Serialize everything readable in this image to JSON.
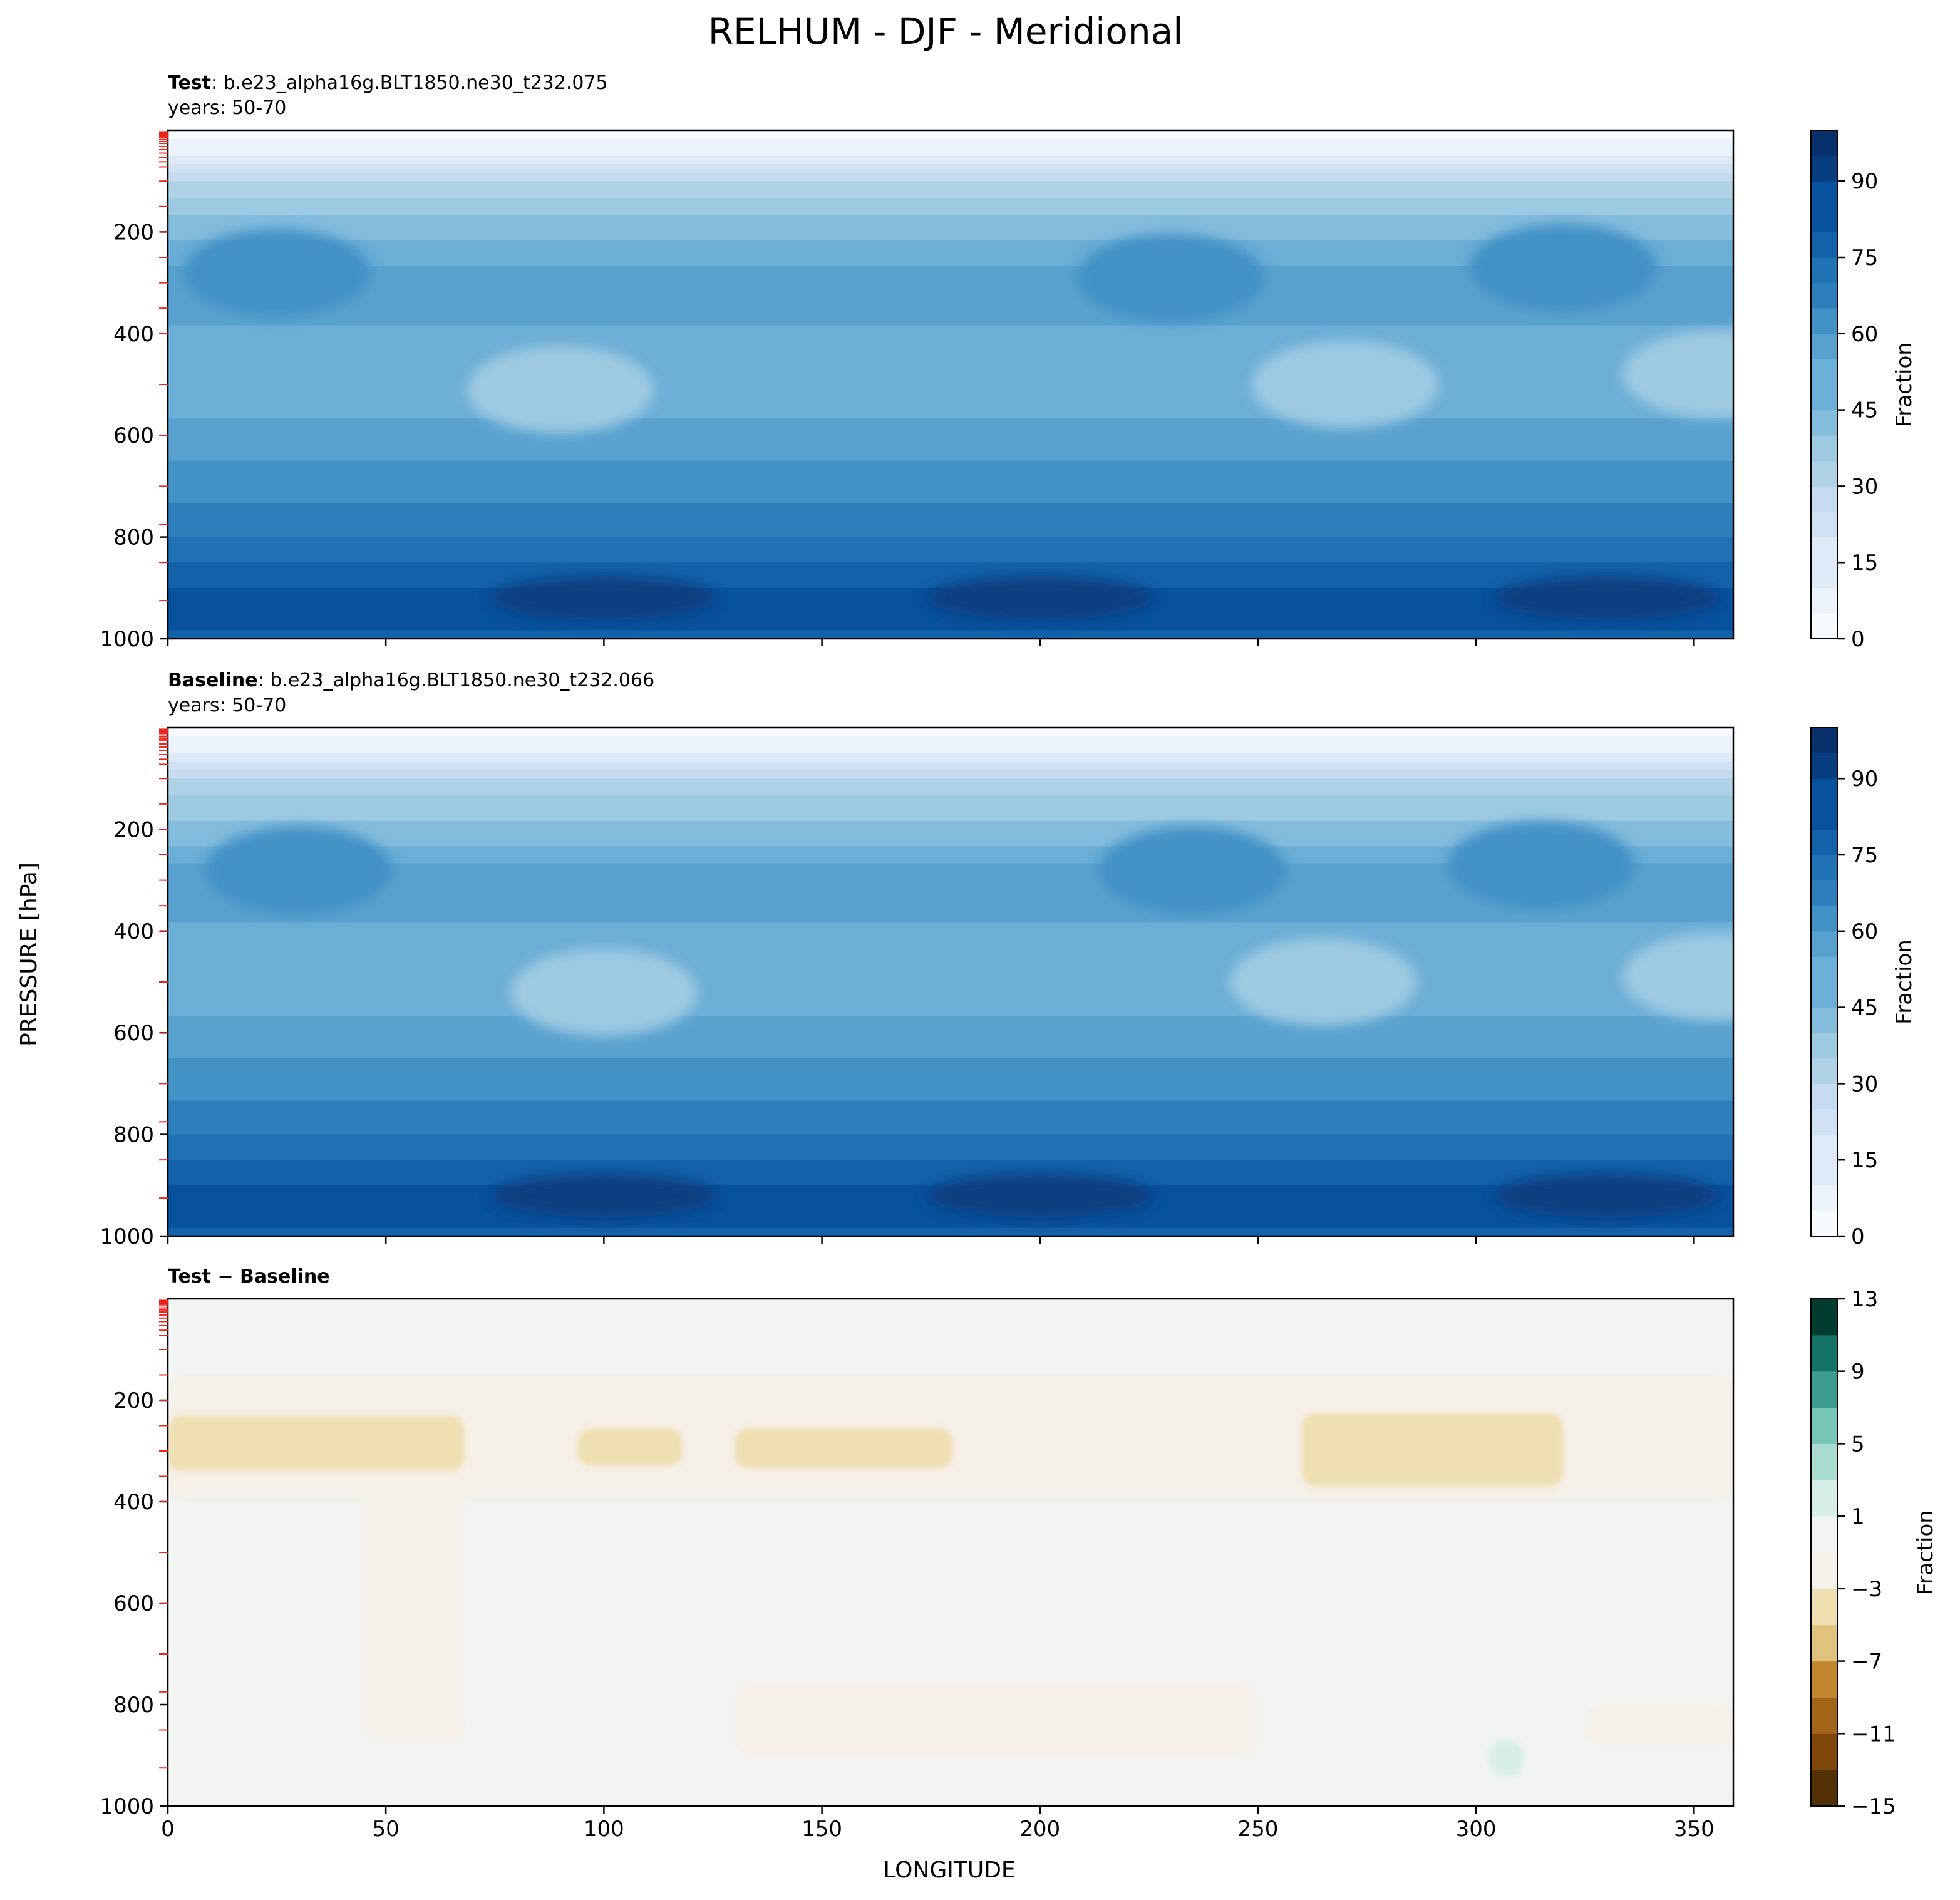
{
  "figure": {
    "title": "RELHUM - DJF - Meridional",
    "ylabel": "PRESSURE [hPa]",
    "xlabel": "LONGITUDE"
  },
  "panels": [
    {
      "id": "test",
      "label_bold": "Test",
      "label_rest": ": b.e23_alpha16g.BLT1850.ne30_t232.075",
      "years": "years: 50-70",
      "colorbar_label": "Fraction"
    },
    {
      "id": "baseline",
      "label_bold": "Baseline",
      "label_rest": ": b.e23_alpha16g.BLT1850.ne30_t232.066",
      "years": "years: 50-70",
      "colorbar_label": "Fraction"
    },
    {
      "id": "diff",
      "label_bold": "Test − Baseline",
      "label_rest": "",
      "years": "",
      "colorbar_label": "Fraction"
    }
  ],
  "colors": {
    "blues": [
      "#f7fbff",
      "#eaf3fb",
      "#deebf7",
      "#cfe1f2",
      "#c6dbef",
      "#b0d2e7",
      "#9ecae1",
      "#84bcdc",
      "#6baed6",
      "#58a1cf",
      "#4292c6",
      "#2f7ebc",
      "#2171b5",
      "#1361a9",
      "#08519c",
      "#083e80",
      "#08306b"
    ],
    "brbg": [
      "#543005",
      "#7f470b",
      "#a36519",
      "#c2872f",
      "#dfc27d",
      "#f0dfb0",
      "#f5f0e8",
      "#f2f4f4",
      "#d7eee8",
      "#abdcd0",
      "#76c5b6",
      "#3c9c8f",
      "#147266",
      "#003c30"
    ]
  },
  "chart_data": [
    {
      "type": "contourf",
      "panel": "test",
      "x": {
        "name": "LONGITUDE",
        "range": [
          0,
          359
        ],
        "ticks": [
          0,
          50,
          100,
          150,
          200,
          250,
          300,
          350
        ]
      },
      "y": {
        "name": "PRESSURE [hPa]",
        "range": [
          0,
          1000
        ],
        "inverted": true,
        "ticks": [
          200,
          400,
          600,
          800,
          1000
        ]
      },
      "levels": [
        0,
        5,
        10,
        15,
        20,
        25,
        30,
        35,
        40,
        45,
        50,
        55,
        60,
        65,
        70,
        75,
        80,
        85,
        90,
        95,
        100
      ],
      "colorbar": {
        "ticks": [
          0,
          15,
          30,
          45,
          60,
          75,
          90
        ],
        "label": "Fraction"
      },
      "profile_by_pressure": [
        {
          "p": 0,
          "rh": 2
        },
        {
          "p": 50,
          "rh": 10
        },
        {
          "p": 100,
          "rh": 30
        },
        {
          "p": 200,
          "rh": 45
        },
        {
          "p": 300,
          "rh": 58
        },
        {
          "p": 400,
          "rh": 52
        },
        {
          "p": 500,
          "rh": 48
        },
        {
          "p": 600,
          "rh": 55
        },
        {
          "p": 700,
          "rh": 62
        },
        {
          "p": 800,
          "rh": 70
        },
        {
          "p": 900,
          "rh": 82
        },
        {
          "p": 950,
          "rh": 88
        },
        {
          "p": 1000,
          "rh": 80
        }
      ],
      "features": [
        {
          "kind": "dry_mid",
          "lon": 90,
          "p": 510,
          "value": 38
        },
        {
          "kind": "dry_mid",
          "lon": 270,
          "p": 500,
          "value": 36
        },
        {
          "kind": "dry_mid",
          "lon": 355,
          "p": 480,
          "value": 40
        },
        {
          "kind": "moist_upper",
          "lon": 25,
          "p": 280,
          "value": 62
        },
        {
          "kind": "moist_upper",
          "lon": 230,
          "p": 290,
          "value": 62
        },
        {
          "kind": "moist_upper",
          "lon": 320,
          "p": 270,
          "value": 62
        },
        {
          "kind": "moist_low",
          "lon": 200,
          "p": 920,
          "value": 92
        },
        {
          "kind": "moist_low",
          "lon": 100,
          "p": 920,
          "value": 90
        },
        {
          "kind": "moist_low",
          "lon": 330,
          "p": 920,
          "value": 90
        }
      ]
    },
    {
      "type": "contourf",
      "panel": "baseline",
      "x": {
        "name": "LONGITUDE",
        "range": [
          0,
          359
        ],
        "ticks": [
          0,
          50,
          100,
          150,
          200,
          250,
          300,
          350
        ]
      },
      "y": {
        "name": "PRESSURE [hPa]",
        "range": [
          0,
          1000
        ],
        "inverted": true,
        "ticks": [
          200,
          400,
          600,
          800,
          1000
        ]
      },
      "levels": [
        0,
        5,
        10,
        15,
        20,
        25,
        30,
        35,
        40,
        45,
        50,
        55,
        60,
        65,
        70,
        75,
        80,
        85,
        90,
        95,
        100
      ],
      "colorbar": {
        "ticks": [
          0,
          15,
          30,
          45,
          60,
          75,
          90
        ],
        "label": "Fraction"
      },
      "profile_by_pressure": [
        {
          "p": 0,
          "rh": 2
        },
        {
          "p": 50,
          "rh": 10
        },
        {
          "p": 100,
          "rh": 30
        },
        {
          "p": 200,
          "rh": 44
        },
        {
          "p": 300,
          "rh": 56
        },
        {
          "p": 400,
          "rh": 52
        },
        {
          "p": 500,
          "rh": 48
        },
        {
          "p": 600,
          "rh": 55
        },
        {
          "p": 700,
          "rh": 62
        },
        {
          "p": 800,
          "rh": 70
        },
        {
          "p": 900,
          "rh": 82
        },
        {
          "p": 950,
          "rh": 88
        },
        {
          "p": 1000,
          "rh": 80
        }
      ],
      "features": [
        {
          "kind": "dry_mid",
          "lon": 100,
          "p": 520,
          "value": 38
        },
        {
          "kind": "dry_mid",
          "lon": 265,
          "p": 500,
          "value": 36
        },
        {
          "kind": "dry_mid",
          "lon": 355,
          "p": 490,
          "value": 40
        },
        {
          "kind": "moist_upper",
          "lon": 30,
          "p": 280,
          "value": 60
        },
        {
          "kind": "moist_upper",
          "lon": 235,
          "p": 280,
          "value": 60
        },
        {
          "kind": "moist_upper",
          "lon": 315,
          "p": 270,
          "value": 62
        },
        {
          "kind": "moist_low",
          "lon": 200,
          "p": 920,
          "value": 92
        },
        {
          "kind": "moist_low",
          "lon": 100,
          "p": 920,
          "value": 90
        },
        {
          "kind": "moist_low",
          "lon": 330,
          "p": 920,
          "value": 90
        }
      ]
    },
    {
      "type": "contourf",
      "panel": "diff",
      "x": {
        "name": "LONGITUDE",
        "range": [
          0,
          359
        ],
        "ticks": [
          0,
          50,
          100,
          150,
          200,
          250,
          300,
          350
        ],
        "ticklabels": [
          "0",
          "50",
          "100",
          "150",
          "200",
          "250",
          "300",
          "350"
        ]
      },
      "y": {
        "name": "PRESSURE [hPa]",
        "range": [
          0,
          1000
        ],
        "inverted": true,
        "ticks": [
          200,
          400,
          600,
          800,
          1000
        ]
      },
      "levels": [
        -15,
        -13,
        -11,
        -9,
        -7,
        -5,
        -3,
        -1,
        1,
        3,
        5,
        7,
        9,
        11,
        13
      ],
      "colorbar": {
        "ticks": [
          -15,
          -11,
          -7,
          -3,
          1,
          5,
          9,
          13
        ],
        "ticklabels": [
          "−15",
          "−11",
          "−7",
          "−3",
          "1",
          "5",
          "9",
          "13"
        ],
        "label": "Fraction"
      },
      "background_value": 0,
      "regions": [
        {
          "desc": "upper negative band",
          "p_range": [
            150,
            400
          ],
          "lon_range": [
            0,
            359
          ],
          "value": -2
        },
        {
          "desc": "stronger negative patch",
          "lon_range": [
            0,
            68
          ],
          "p_range": [
            230,
            340
          ],
          "value": -4
        },
        {
          "desc": "stronger negative patch",
          "lon_range": [
            94,
            118
          ],
          "p_range": [
            255,
            330
          ],
          "value": -4
        },
        {
          "desc": "stronger negative patch",
          "lon_range": [
            130,
            180
          ],
          "p_range": [
            255,
            335
          ],
          "value": -4
        },
        {
          "desc": "stronger negative patch",
          "lon_range": [
            260,
            320
          ],
          "p_range": [
            225,
            370
          ],
          "value": -4
        },
        {
          "desc": "negative column",
          "lon_range": [
            45,
            68
          ],
          "p_range": [
            380,
            870
          ],
          "value": -2
        },
        {
          "desc": "low-level negative band",
          "lon_range": [
            130,
            250
          ],
          "p_range": [
            760,
            900
          ],
          "value": -2
        },
        {
          "desc": "low-level negative patch",
          "lon_range": [
            325,
            359
          ],
          "p_range": [
            800,
            880
          ],
          "value": -2
        },
        {
          "desc": "positive patch",
          "lon_range": [
            303,
            311
          ],
          "p_range": [
            870,
            940
          ],
          "value": 2
        }
      ]
    }
  ]
}
